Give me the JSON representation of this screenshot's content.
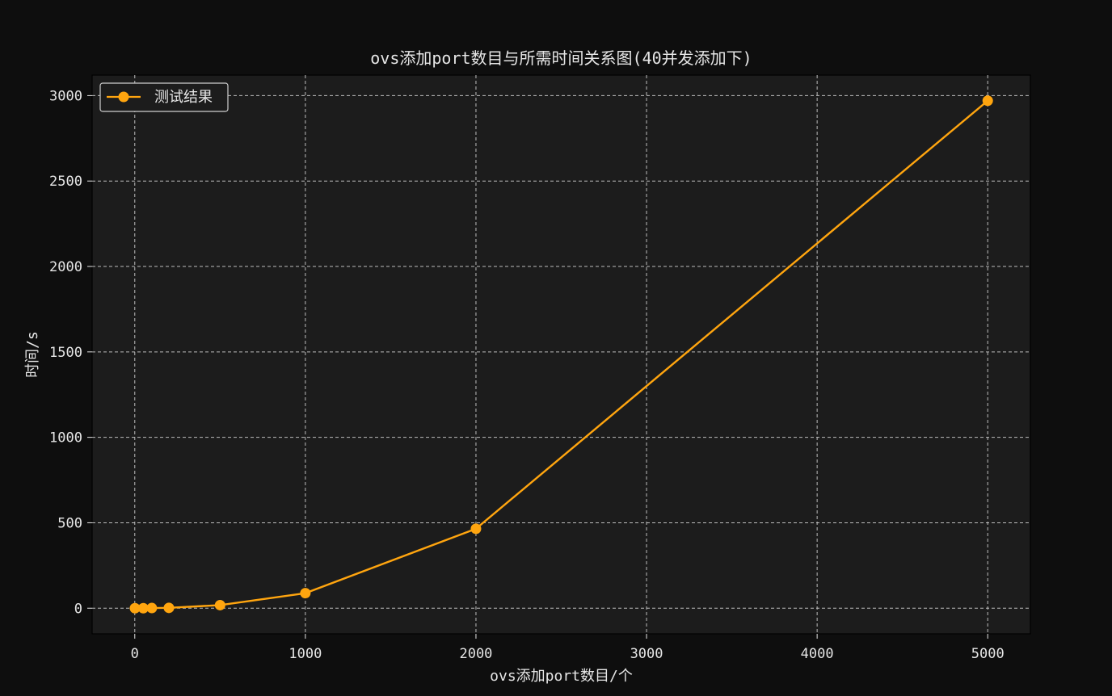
{
  "chart_data": {
    "type": "line",
    "title": "ovs添加port数目与所需时间关系图(40并发添加下)",
    "xlabel": "ovs添加port数目/个",
    "ylabel": "时间/s",
    "xlim": [
      -250,
      5250
    ],
    "ylim": [
      -150,
      3120
    ],
    "x_ticks": [
      0,
      1000,
      2000,
      3000,
      4000,
      5000
    ],
    "y_ticks": [
      0,
      500,
      1000,
      1500,
      2000,
      2500,
      3000
    ],
    "grid": true,
    "grid_style": "dashed",
    "legend_position": "upper-left",
    "series": [
      {
        "name": "测试结果",
        "color": "#ffa50f",
        "marker": "circle",
        "x": [
          1,
          50,
          100,
          200,
          500,
          1000,
          2000,
          5000
        ],
        "y": [
          0,
          0,
          1,
          2,
          18,
          88,
          465,
          2970
        ]
      }
    ]
  },
  "colors": {
    "figure_bg": "#0e0e0e",
    "plot_bg": "#1c1c1c",
    "grid": "#bdbdbd",
    "text": "#e6e6e6",
    "axis": "#000000"
  }
}
